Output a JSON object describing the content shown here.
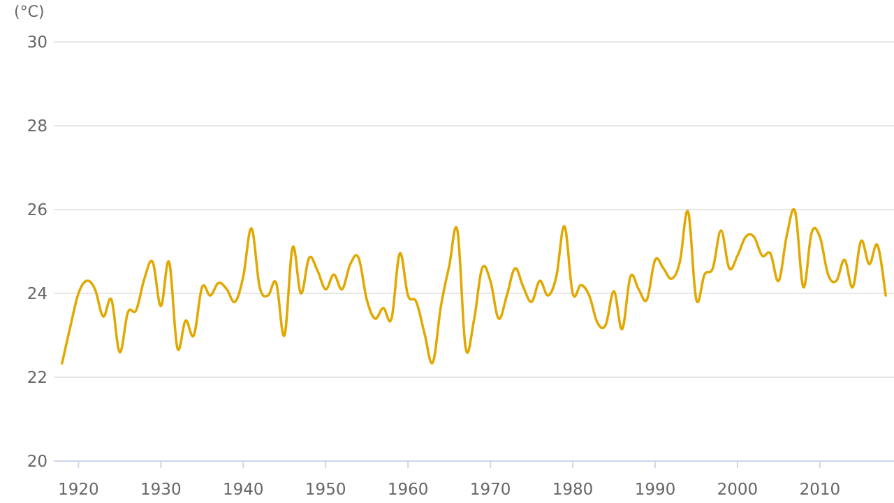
{
  "chart_data": {
    "type": "line",
    "y_unit_label": "(°C)",
    "ylim": [
      20,
      30
    ],
    "xlim": [
      1917,
      2019
    ],
    "y_ticks": [
      20,
      22,
      24,
      26,
      28,
      30
    ],
    "x_ticks": [
      1920,
      1930,
      1940,
      1950,
      1960,
      1970,
      1980,
      1990,
      2000,
      2010
    ],
    "grid": true,
    "series": [
      {
        "color": "#e0a800",
        "x": [
          1918,
          1919,
          1920,
          1921,
          1922,
          1923,
          1924,
          1925,
          1926,
          1927,
          1928,
          1929,
          1930,
          1931,
          1932,
          1933,
          1934,
          1935,
          1936,
          1937,
          1938,
          1939,
          1940,
          1941,
          1942,
          1943,
          1944,
          1945,
          1946,
          1947,
          1948,
          1949,
          1950,
          1951,
          1952,
          1953,
          1954,
          1955,
          1956,
          1957,
          1958,
          1959,
          1960,
          1961,
          1962,
          1963,
          1964,
          1965,
          1966,
          1967,
          1968,
          1969,
          1970,
          1971,
          1972,
          1973,
          1974,
          1975,
          1976,
          1977,
          1978,
          1979,
          1980,
          1981,
          1982,
          1983,
          1984,
          1985,
          1986,
          1987,
          1988,
          1989,
          1990,
          1991,
          1992,
          1993,
          1994,
          1995,
          1996,
          1997,
          1998,
          1999,
          2000,
          2001,
          2002,
          2003,
          2004,
          2005,
          2006,
          2007,
          2008,
          2009,
          2010,
          2011,
          2012,
          2013,
          2014,
          2015,
          2016,
          2017,
          2018
        ],
        "values": [
          22.33,
          23.2,
          24.0,
          24.3,
          24.1,
          23.45,
          23.85,
          22.6,
          23.55,
          23.6,
          24.35,
          24.75,
          23.7,
          24.75,
          22.7,
          23.35,
          23.0,
          24.15,
          23.95,
          24.25,
          24.1,
          23.8,
          24.4,
          25.55,
          24.15,
          23.95,
          24.25,
          23.0,
          25.1,
          24.0,
          24.85,
          24.55,
          24.1,
          24.45,
          24.1,
          24.7,
          24.85,
          23.85,
          23.4,
          23.65,
          23.4,
          24.95,
          23.95,
          23.8,
          23.05,
          22.35,
          23.7,
          24.65,
          25.5,
          22.7,
          23.35,
          24.6,
          24.3,
          23.4,
          23.95,
          24.6,
          24.15,
          23.8,
          24.3,
          23.95,
          24.4,
          25.6,
          24.0,
          24.2,
          23.95,
          23.3,
          23.25,
          24.05,
          23.15,
          24.4,
          24.1,
          23.85,
          24.8,
          24.6,
          24.35,
          24.75,
          25.95,
          23.85,
          24.45,
          24.6,
          25.5,
          24.6,
          24.9,
          25.35,
          25.35,
          24.9,
          24.95,
          24.3,
          25.4,
          25.95,
          24.15,
          25.45,
          25.35,
          24.45,
          24.3,
          24.8,
          24.15,
          25.25,
          24.7,
          25.15,
          23.95
        ]
      }
    ]
  }
}
